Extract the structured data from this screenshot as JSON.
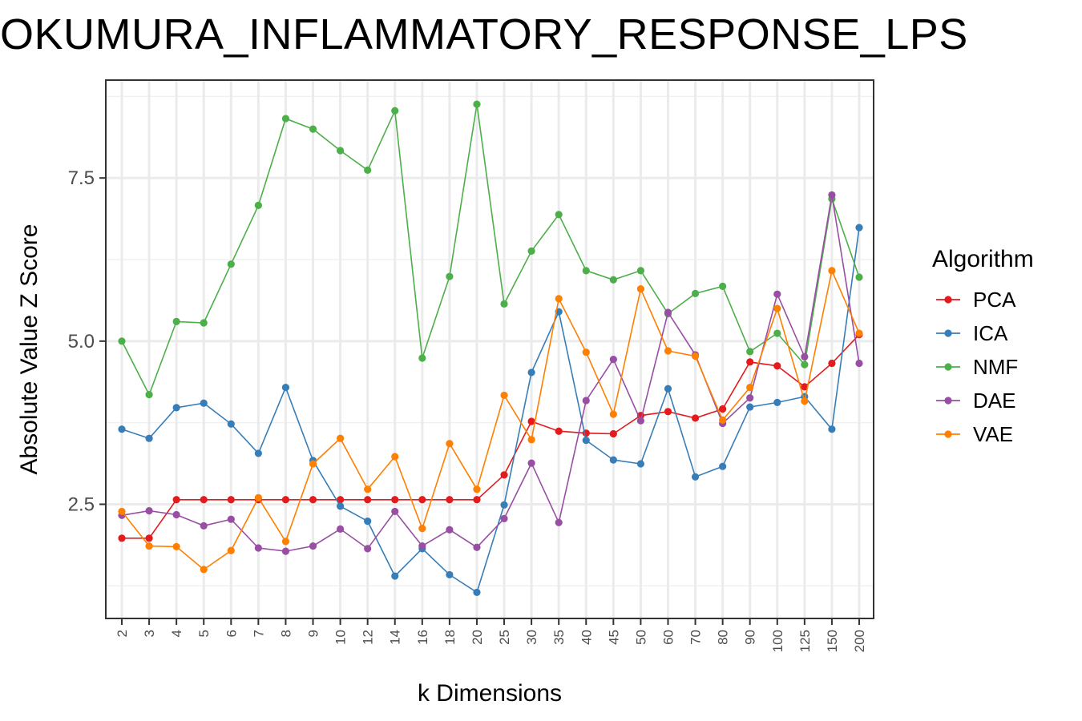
{
  "chart_data": {
    "type": "line",
    "title": "OKUMURA_INFLAMMATORY_RESPONSE_LPS",
    "xlabel": "k Dimensions",
    "ylabel": "Absolute Value Z Score",
    "categories": [
      "2",
      "3",
      "4",
      "5",
      "6",
      "7",
      "8",
      "9",
      "10",
      "12",
      "14",
      "16",
      "18",
      "20",
      "25",
      "30",
      "35",
      "40",
      "45",
      "50",
      "60",
      "70",
      "80",
      "90",
      "100",
      "125",
      "150",
      "200"
    ],
    "ylim": [
      0.75,
      9.0
    ],
    "yticks": [
      2.5,
      5.0,
      7.5
    ],
    "ytick_labels": [
      "2.5",
      "5.0",
      "7.5"
    ],
    "grid": true,
    "legend_title": "Algorithm",
    "legend_position": "right",
    "series": [
      {
        "name": "PCA",
        "color": "#e41a1c",
        "values": [
          1.98,
          1.98,
          2.57,
          2.57,
          2.57,
          2.57,
          2.57,
          2.57,
          2.57,
          2.57,
          2.57,
          2.57,
          2.57,
          2.57,
          2.95,
          3.77,
          3.62,
          3.59,
          3.58,
          3.86,
          3.92,
          3.82,
          3.96,
          4.68,
          4.62,
          4.3,
          4.66,
          5.1
        ]
      },
      {
        "name": "ICA",
        "color": "#377eb8",
        "values": [
          3.65,
          3.51,
          3.98,
          4.05,
          3.73,
          3.28,
          4.29,
          3.17,
          2.47,
          2.24,
          1.4,
          1.82,
          1.42,
          1.15,
          2.49,
          4.52,
          5.45,
          3.48,
          3.18,
          3.12,
          4.27,
          2.92,
          3.08,
          3.99,
          4.06,
          4.15,
          3.65,
          6.74
        ]
      },
      {
        "name": "NMF",
        "color": "#4daf4a",
        "values": [
          5.0,
          4.18,
          5.3,
          5.28,
          6.18,
          7.08,
          8.41,
          8.25,
          7.92,
          7.62,
          8.53,
          4.74,
          5.99,
          8.63,
          5.57,
          6.38,
          6.94,
          6.08,
          5.94,
          6.08,
          5.42,
          5.73,
          5.84,
          4.84,
          5.12,
          4.64,
          7.18,
          5.98
        ]
      },
      {
        "name": "DAE",
        "color": "#984ea3",
        "values": [
          2.33,
          2.4,
          2.34,
          2.17,
          2.27,
          1.83,
          1.78,
          1.86,
          2.12,
          1.82,
          2.39,
          1.86,
          2.11,
          1.84,
          2.28,
          3.13,
          2.22,
          4.09,
          4.72,
          3.78,
          5.44,
          4.79,
          3.74,
          4.13,
          5.72,
          4.76,
          7.24,
          4.66
        ]
      },
      {
        "name": "VAE",
        "color": "#ff7f00",
        "values": [
          2.39,
          1.86,
          1.85,
          1.5,
          1.79,
          2.6,
          1.93,
          3.12,
          3.51,
          2.73,
          3.23,
          2.13,
          3.43,
          2.73,
          4.17,
          3.49,
          5.65,
          4.83,
          3.88,
          5.8,
          4.85,
          4.77,
          3.79,
          4.29,
          5.5,
          4.08,
          6.08,
          5.12
        ]
      }
    ]
  }
}
